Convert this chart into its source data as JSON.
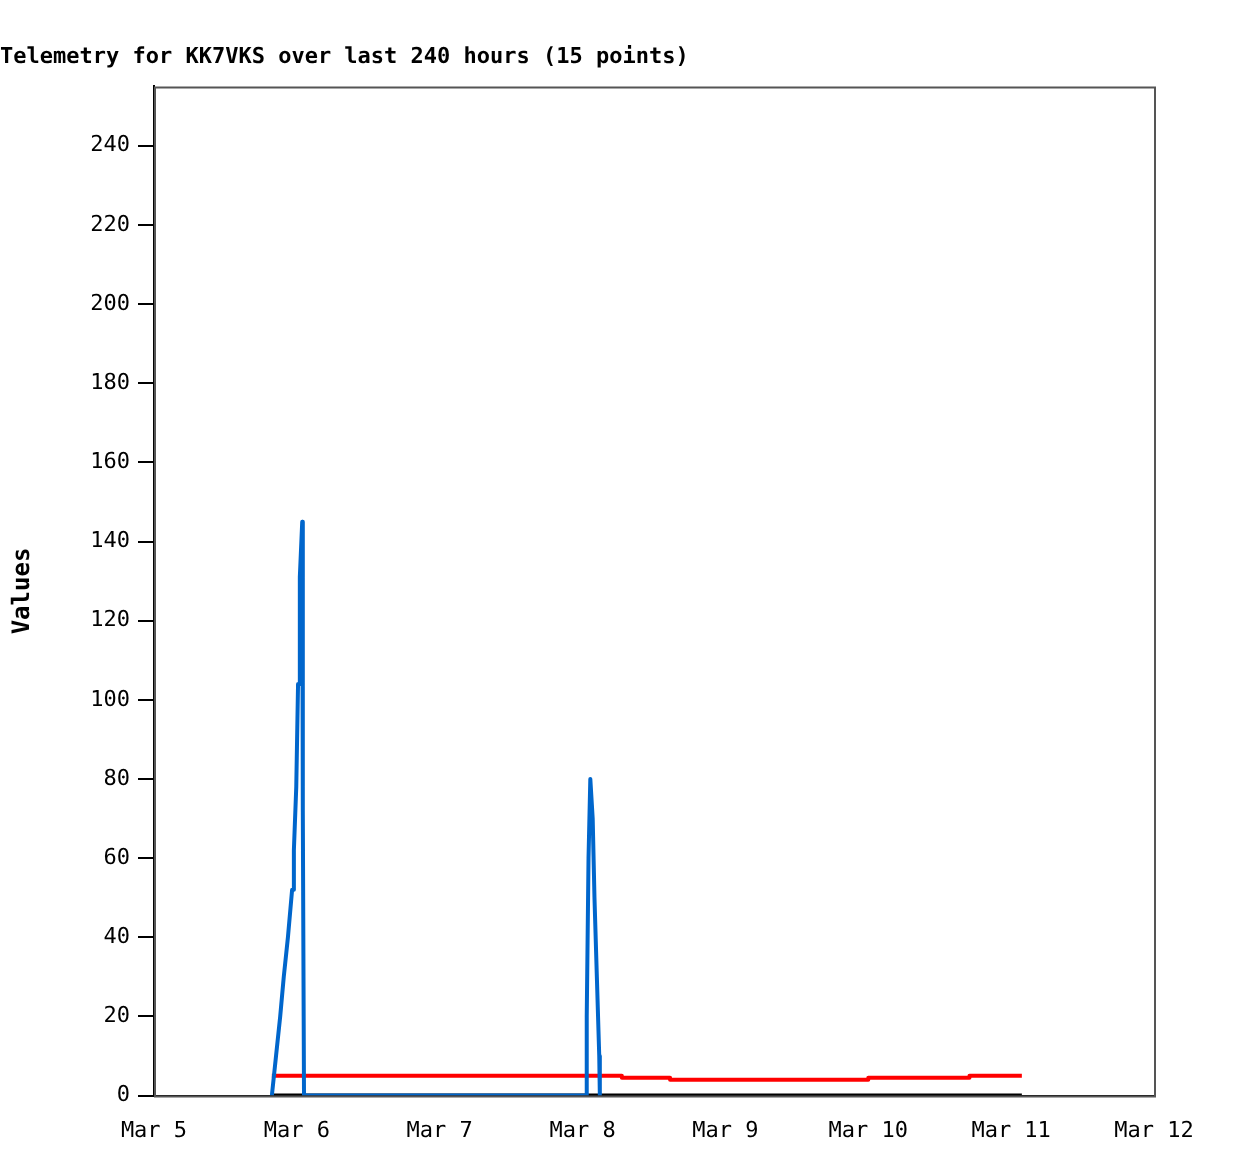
{
  "chart_data": {
    "type": "line",
    "title": "Telemetry for KK7VKS over last 240 hours (15 points)",
    "ylabel": "Values",
    "xlim": [
      "--03-05",
      "--03-12"
    ],
    "xticks": [
      {
        "value": "--03-05",
        "label": "Mar 5"
      },
      {
        "value": "--03-06",
        "label": "Mar 6"
      },
      {
        "value": "--03-07",
        "label": "Mar 7"
      },
      {
        "value": "--03-08",
        "label": "Mar 8"
      },
      {
        "value": "--03-09",
        "label": "Mar 9"
      },
      {
        "value": "--03-10",
        "label": "Mar 10"
      },
      {
        "value": "--03-11",
        "label": "Mar 11"
      },
      {
        "value": "--03-12",
        "label": "Mar 12"
      }
    ],
    "ylim": [
      0,
      255
    ],
    "yticks": [
      0,
      20,
      40,
      60,
      80,
      100,
      120,
      140,
      160,
      180,
      200,
      220,
      240
    ],
    "grid": false,
    "legend": false,
    "marker": "none",
    "line_style": "solid",
    "series": [
      {
        "color": "#000000",
        "x": [
          "--03-05T19:48",
          "--03-11T01:48"
        ],
        "values": [
          0,
          0
        ]
      },
      {
        "color": "#ff0000",
        "x": [
          "--03-05T19:48",
          "--03-08T06:36",
          "--03-08T06:36",
          "--03-08T14:42",
          "--03-08T14:42",
          "--03-10T00:00",
          "--03-10T00:00",
          "--03-10T17:00",
          "--03-10T17:00",
          "--03-11T01:48"
        ],
        "values": [
          5,
          5,
          4.5,
          4.5,
          4,
          4,
          4.5,
          4.5,
          5,
          5
        ]
      },
      {
        "color": "#0066cc",
        "x": [
          "--03-05T19:48",
          "--03-05T20:30",
          "--03-05T21:12",
          "--03-05T21:48",
          "--03-05T22:30",
          "--03-05T23:12",
          "--03-05T23:30",
          "--03-05T23:54",
          "--03-06T00:12",
          "--03-06T00:30",
          "--03-06T00:54",
          "--03-06T01:00",
          "--03-06T01:12",
          "--03-08T00:36",
          "--03-08T00:42",
          "--03-08T01:00",
          "--03-08T01:18",
          "--03-08T01:42",
          "--03-08T02:00",
          "--03-08T02:24",
          "--03-08T02:48",
          "--03-08T02:54"
        ],
        "values": [
          0,
          10,
          20,
          30,
          40,
          52,
          62,
          78,
          104,
          131,
          145,
          72,
          0,
          0,
          20,
          60,
          80,
          70,
          50,
          30,
          10,
          0
        ]
      }
    ]
  }
}
